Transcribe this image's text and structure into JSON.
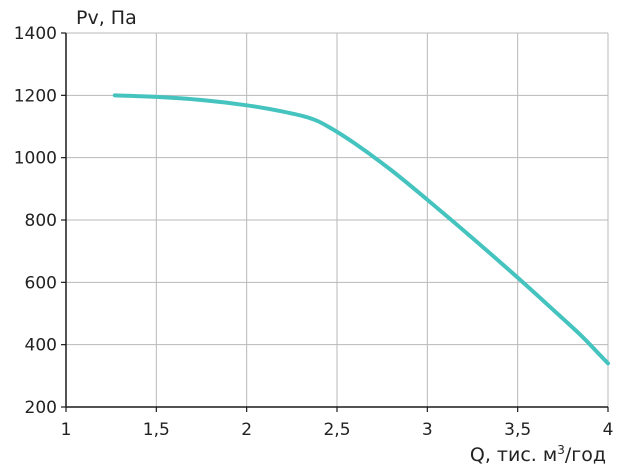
{
  "colors": {
    "background": "#ffffff",
    "grid": "#b8b8b8",
    "axis": "#1a1a1a",
    "series": "#45c3bf",
    "text": "#222222"
  },
  "chart_data": {
    "type": "line",
    "title": "",
    "ylabel": "Pv, Па",
    "xlabel_prefix": "Q, тис. м",
    "xlabel_superscript": "3",
    "xlabel_suffix": "/год",
    "xlim": [
      1,
      4
    ],
    "ylim": [
      200,
      1400
    ],
    "x_tick_values": [
      1,
      1.5,
      2,
      2.5,
      3,
      3.5,
      4
    ],
    "x_tick_labels": [
      "1",
      "1,5",
      "2",
      "2,5",
      "3",
      "3,5",
      "4"
    ],
    "y_tick_values": [
      200,
      400,
      600,
      800,
      1000,
      1200,
      1400
    ],
    "y_tick_labels": [
      "200",
      "400",
      "600",
      "800",
      "1000",
      "1200",
      "1400"
    ],
    "grid": true,
    "series": [
      {
        "color": "#45c3bf",
        "points": [
          [
            1.27,
            1200
          ],
          [
            1.5,
            1195
          ],
          [
            1.75,
            1185
          ],
          [
            2.0,
            1168
          ],
          [
            2.2,
            1148
          ],
          [
            2.35,
            1127
          ],
          [
            2.45,
            1100
          ],
          [
            2.6,
            1045
          ],
          [
            2.8,
            960
          ],
          [
            3.0,
            865
          ],
          [
            3.25,
            742
          ],
          [
            3.5,
            615
          ],
          [
            3.7,
            510
          ],
          [
            3.85,
            430
          ],
          [
            3.95,
            370
          ],
          [
            4.0,
            340
          ]
        ]
      }
    ]
  }
}
